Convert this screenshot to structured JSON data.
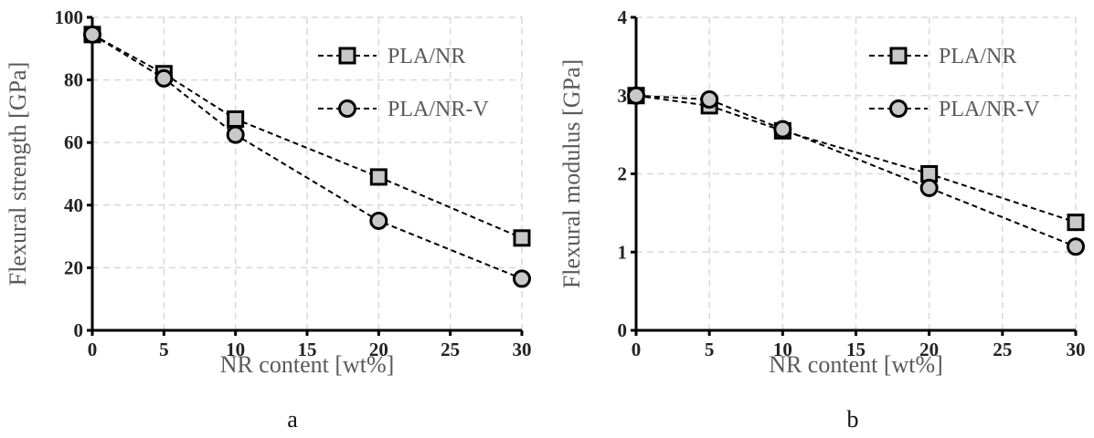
{
  "chart_data": [
    {
      "type": "line",
      "panel_label": "a",
      "title": "",
      "xlabel": "NR content [wt%]",
      "ylabel": "Flexural strength [GPa]",
      "xlim": [
        0,
        30
      ],
      "ylim": [
        0,
        100
      ],
      "xticks": [
        0,
        5,
        10,
        15,
        20,
        25,
        30
      ],
      "yticks": [
        0,
        20,
        40,
        60,
        80,
        100
      ],
      "grid": true,
      "legend_position": "top-right",
      "series": [
        {
          "name": "PLA/NR",
          "marker": "square",
          "x": [
            0,
            5,
            10,
            20,
            30
          ],
          "y": [
            94.5,
            82,
            67.5,
            49,
            29.5
          ]
        },
        {
          "name": "PLA/NR-V",
          "marker": "circle",
          "x": [
            0,
            5,
            10,
            20,
            30
          ],
          "y": [
            94.5,
            80.5,
            62.5,
            35,
            16.5
          ]
        }
      ]
    },
    {
      "type": "line",
      "panel_label": "b",
      "title": "",
      "xlabel": "NR content [wt%]",
      "ylabel": "Flexural modulus [GPa]",
      "xlim": [
        0,
        30
      ],
      "ylim": [
        0,
        4
      ],
      "xticks": [
        0,
        5,
        10,
        15,
        20,
        25,
        30
      ],
      "yticks": [
        0,
        1,
        2,
        3,
        4
      ],
      "grid": true,
      "legend_position": "top-right",
      "series": [
        {
          "name": "PLA/NR",
          "marker": "square",
          "x": [
            0,
            5,
            10,
            20,
            30
          ],
          "y": [
            3.0,
            2.87,
            2.55,
            2.0,
            1.38
          ]
        },
        {
          "name": "PLA/NR-V",
          "marker": "circle",
          "x": [
            0,
            5,
            10,
            20,
            30
          ],
          "y": [
            3.0,
            2.95,
            2.57,
            1.82,
            1.07
          ]
        }
      ]
    }
  ],
  "colors": {
    "marker_fill": "#c8c8c8",
    "marker_stroke": "#000000",
    "line": "#000000",
    "grid": "#d9d9d9",
    "axis_title": "#595959"
  }
}
